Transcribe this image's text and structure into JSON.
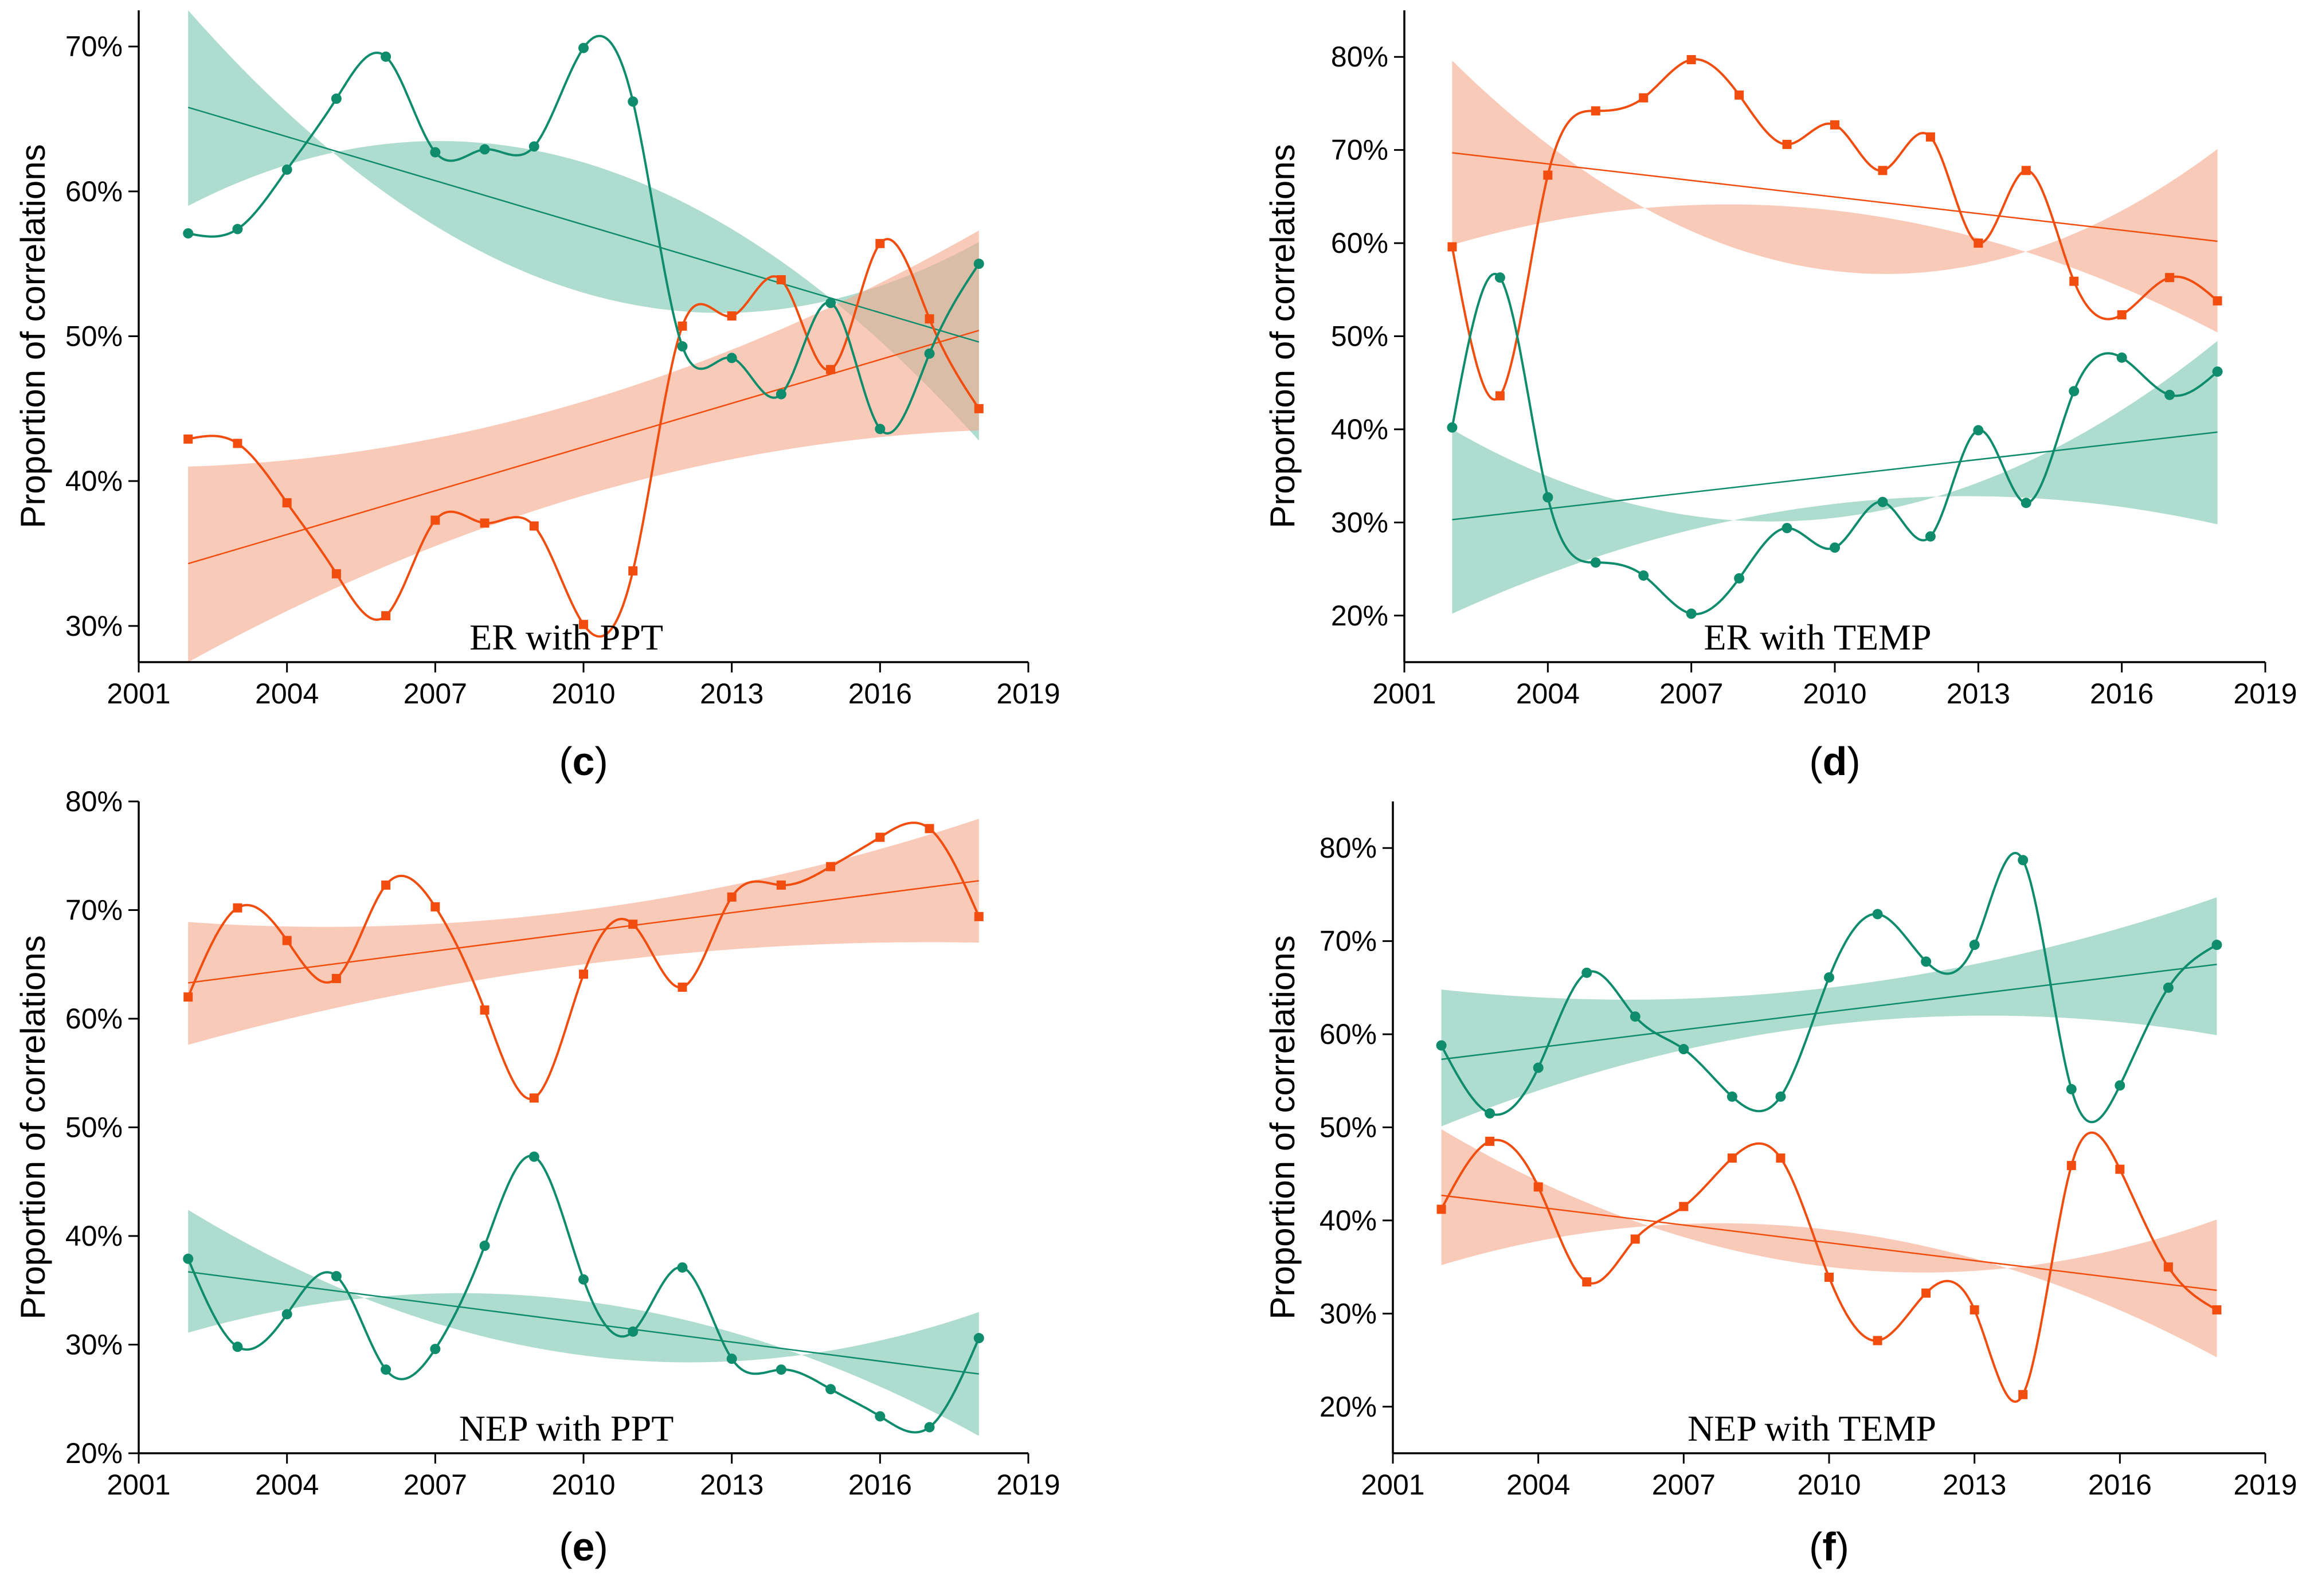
{
  "colors": {
    "orange_series": "#f14d0f",
    "orange_band": "#f5a98c",
    "green_series": "#0e8c6c",
    "green_band": "#7cc7b1",
    "axis": "#000000"
  },
  "chart_data": [
    {
      "type": "line",
      "panel_id": "c",
      "panel_label": "(c)",
      "in_plot_label": "ER with PPT",
      "ylabel": "Proportion of correlations",
      "xlabel": "",
      "xlim": [
        2001,
        2019
      ],
      "xticks": [
        "2001",
        "2004",
        "2007",
        "2010",
        "2013",
        "2016",
        "2019"
      ],
      "ylim": [
        27.5,
        72.5
      ],
      "yticks": [
        "30%",
        "40%",
        "50%",
        "60%",
        "70%"
      ],
      "x": [
        2002,
        2003,
        2004,
        2005,
        2006,
        2007,
        2008,
        2009,
        2010,
        2011,
        2012,
        2013,
        2014,
        2015,
        2016,
        2017,
        2018
      ],
      "series": [
        {
          "name": "orange",
          "marker": "square",
          "values": [
            42.9,
            42.6,
            38.5,
            33.6,
            30.7,
            37.3,
            37.1,
            36.9,
            30.1,
            33.8,
            50.7,
            51.4,
            53.9,
            47.7,
            56.4,
            51.2,
            45.0
          ],
          "trend": [
            34.3,
            50.4
          ],
          "band_lower": [
            27.5,
            43.5
          ],
          "band_mid": [
            39.0,
            45.5
          ],
          "band_upper": [
            41.0,
            57.3
          ]
        },
        {
          "name": "green",
          "marker": "circle",
          "values": [
            57.1,
            57.4,
            61.5,
            66.4,
            69.3,
            62.7,
            62.9,
            63.1,
            69.9,
            66.2,
            49.3,
            48.5,
            46.0,
            52.3,
            43.6,
            48.8,
            55.0
          ],
          "trend": [
            65.8,
            49.6
          ],
          "band_lower": [
            59.0,
            42.8
          ],
          "band_mid": [
            62.0,
            53.0
          ],
          "band_upper": [
            72.5,
            56.5
          ]
        }
      ]
    },
    {
      "type": "line",
      "panel_id": "d",
      "panel_label": "(d)",
      "in_plot_label": "ER with TEMP",
      "ylabel": "Proportion of correlations",
      "xlabel": "",
      "xlim": [
        2001,
        2019
      ],
      "xticks": [
        "2001",
        "2004",
        "2007",
        "2010",
        "2013",
        "2016",
        "2019"
      ],
      "ylim": [
        15,
        85
      ],
      "yticks": [
        "20%",
        "30%",
        "40%",
        "50%",
        "60%",
        "70%",
        "80%"
      ],
      "x": [
        2002,
        2003,
        2004,
        2005,
        2006,
        2007,
        2008,
        2009,
        2010,
        2011,
        2012,
        2013,
        2014,
        2015,
        2016,
        2017,
        2018
      ],
      "series": [
        {
          "name": "orange",
          "marker": "square",
          "values": [
            59.6,
            43.6,
            67.3,
            74.2,
            75.6,
            79.7,
            75.9,
            70.6,
            72.7,
            67.8,
            71.4,
            60.0,
            67.8,
            55.9,
            52.3,
            56.3,
            53.8
          ],
          "trend": [
            69.7,
            60.2
          ],
          "band_lower": [
            59.8,
            50.4
          ],
          "band_mid": [
            63.5,
            57.0
          ],
          "band_upper": [
            79.6,
            70.1
          ]
        },
        {
          "name": "green",
          "marker": "circle",
          "values": [
            40.2,
            56.3,
            32.7,
            25.7,
            24.3,
            20.2,
            24.0,
            29.4,
            27.3,
            32.2,
            28.5,
            39.9,
            32.1,
            44.1,
            47.7,
            43.7,
            46.2
          ],
          "trend": [
            30.3,
            39.7
          ],
          "band_lower": [
            20.2,
            29.8
          ],
          "band_mid": [
            32.0,
            30.5
          ],
          "band_upper": [
            40.0,
            49.5
          ]
        }
      ]
    },
    {
      "type": "line",
      "panel_id": "e",
      "panel_label": "(e)",
      "in_plot_label": "NEP with PPT",
      "ylabel": "Proportion of correlations",
      "xlabel": "",
      "xlim": [
        2001,
        2019
      ],
      "xticks": [
        "2001",
        "2004",
        "2007",
        "2010",
        "2013",
        "2016",
        "2019"
      ],
      "ylim": [
        20,
        80
      ],
      "yticks": [
        "20%",
        "30%",
        "40%",
        "50%",
        "60%",
        "70%",
        "80%"
      ],
      "x": [
        2002,
        2003,
        2004,
        2005,
        2006,
        2007,
        2008,
        2009,
        2010,
        2011,
        2012,
        2013,
        2014,
        2015,
        2016,
        2017,
        2018
      ],
      "series": [
        {
          "name": "orange",
          "marker": "square",
          "values": [
            62.0,
            70.2,
            67.2,
            63.7,
            72.3,
            70.3,
            60.8,
            52.7,
            64.1,
            68.7,
            62.9,
            71.2,
            72.3,
            74.0,
            76.7,
            77.5,
            69.4
          ],
          "trend": [
            63.3,
            72.7
          ],
          "band_lower": [
            57.6,
            67.0
          ],
          "band_mid": [
            65.0,
            70.0
          ],
          "band_upper": [
            68.9,
            78.4
          ]
        },
        {
          "name": "green",
          "marker": "circle",
          "values": [
            37.9,
            29.8,
            32.8,
            36.3,
            27.7,
            29.6,
            39.1,
            47.3,
            36.0,
            31.2,
            37.1,
            28.7,
            27.7,
            25.9,
            23.4,
            22.4,
            30.6
          ],
          "trend": [
            36.7,
            27.3
          ],
          "band_lower": [
            31.1,
            21.6
          ],
          "band_mid": [
            34.0,
            29.0
          ],
          "band_upper": [
            42.4,
            33.0
          ]
        }
      ]
    },
    {
      "type": "line",
      "panel_id": "f",
      "panel_label": "(f)",
      "in_plot_label": "NEP with TEMP",
      "ylabel": "Proportion of correlations",
      "xlabel": "",
      "xlim": [
        2001,
        2019
      ],
      "xticks": [
        "2001",
        "2004",
        "2007",
        "2010",
        "2013",
        "2016",
        "2019"
      ],
      "ylim": [
        15,
        85
      ],
      "yticks": [
        "20%",
        "30%",
        "40%",
        "50%",
        "60%",
        "70%",
        "80%"
      ],
      "x": [
        2002,
        2003,
        2004,
        2005,
        2006,
        2007,
        2008,
        2009,
        2010,
        2011,
        2012,
        2013,
        2014,
        2015,
        2016,
        2017,
        2018
      ],
      "series": [
        {
          "name": "orange",
          "marker": "square",
          "values": [
            41.2,
            48.5,
            43.6,
            33.4,
            38.0,
            41.5,
            46.7,
            46.7,
            33.9,
            27.1,
            32.2,
            30.4,
            21.3,
            45.9,
            45.5,
            35.0,
            30.4
          ],
          "trend": [
            42.7,
            32.5
          ],
          "band_lower": [
            35.2,
            25.3
          ],
          "band_mid": [
            39.0,
            35.0
          ],
          "band_upper": [
            49.8,
            40.1
          ]
        },
        {
          "name": "green",
          "marker": "circle",
          "values": [
            58.8,
            51.5,
            56.4,
            66.6,
            61.9,
            58.4,
            53.3,
            53.3,
            66.1,
            72.9,
            67.8,
            69.6,
            78.7,
            54.1,
            54.5,
            65.0,
            69.6
          ],
          "trend": [
            57.3,
            67.5
          ],
          "band_lower": [
            50.1,
            59.9
          ],
          "band_mid": [
            61.0,
            65.0
          ],
          "band_upper": [
            64.8,
            74.7
          ]
        }
      ]
    }
  ]
}
